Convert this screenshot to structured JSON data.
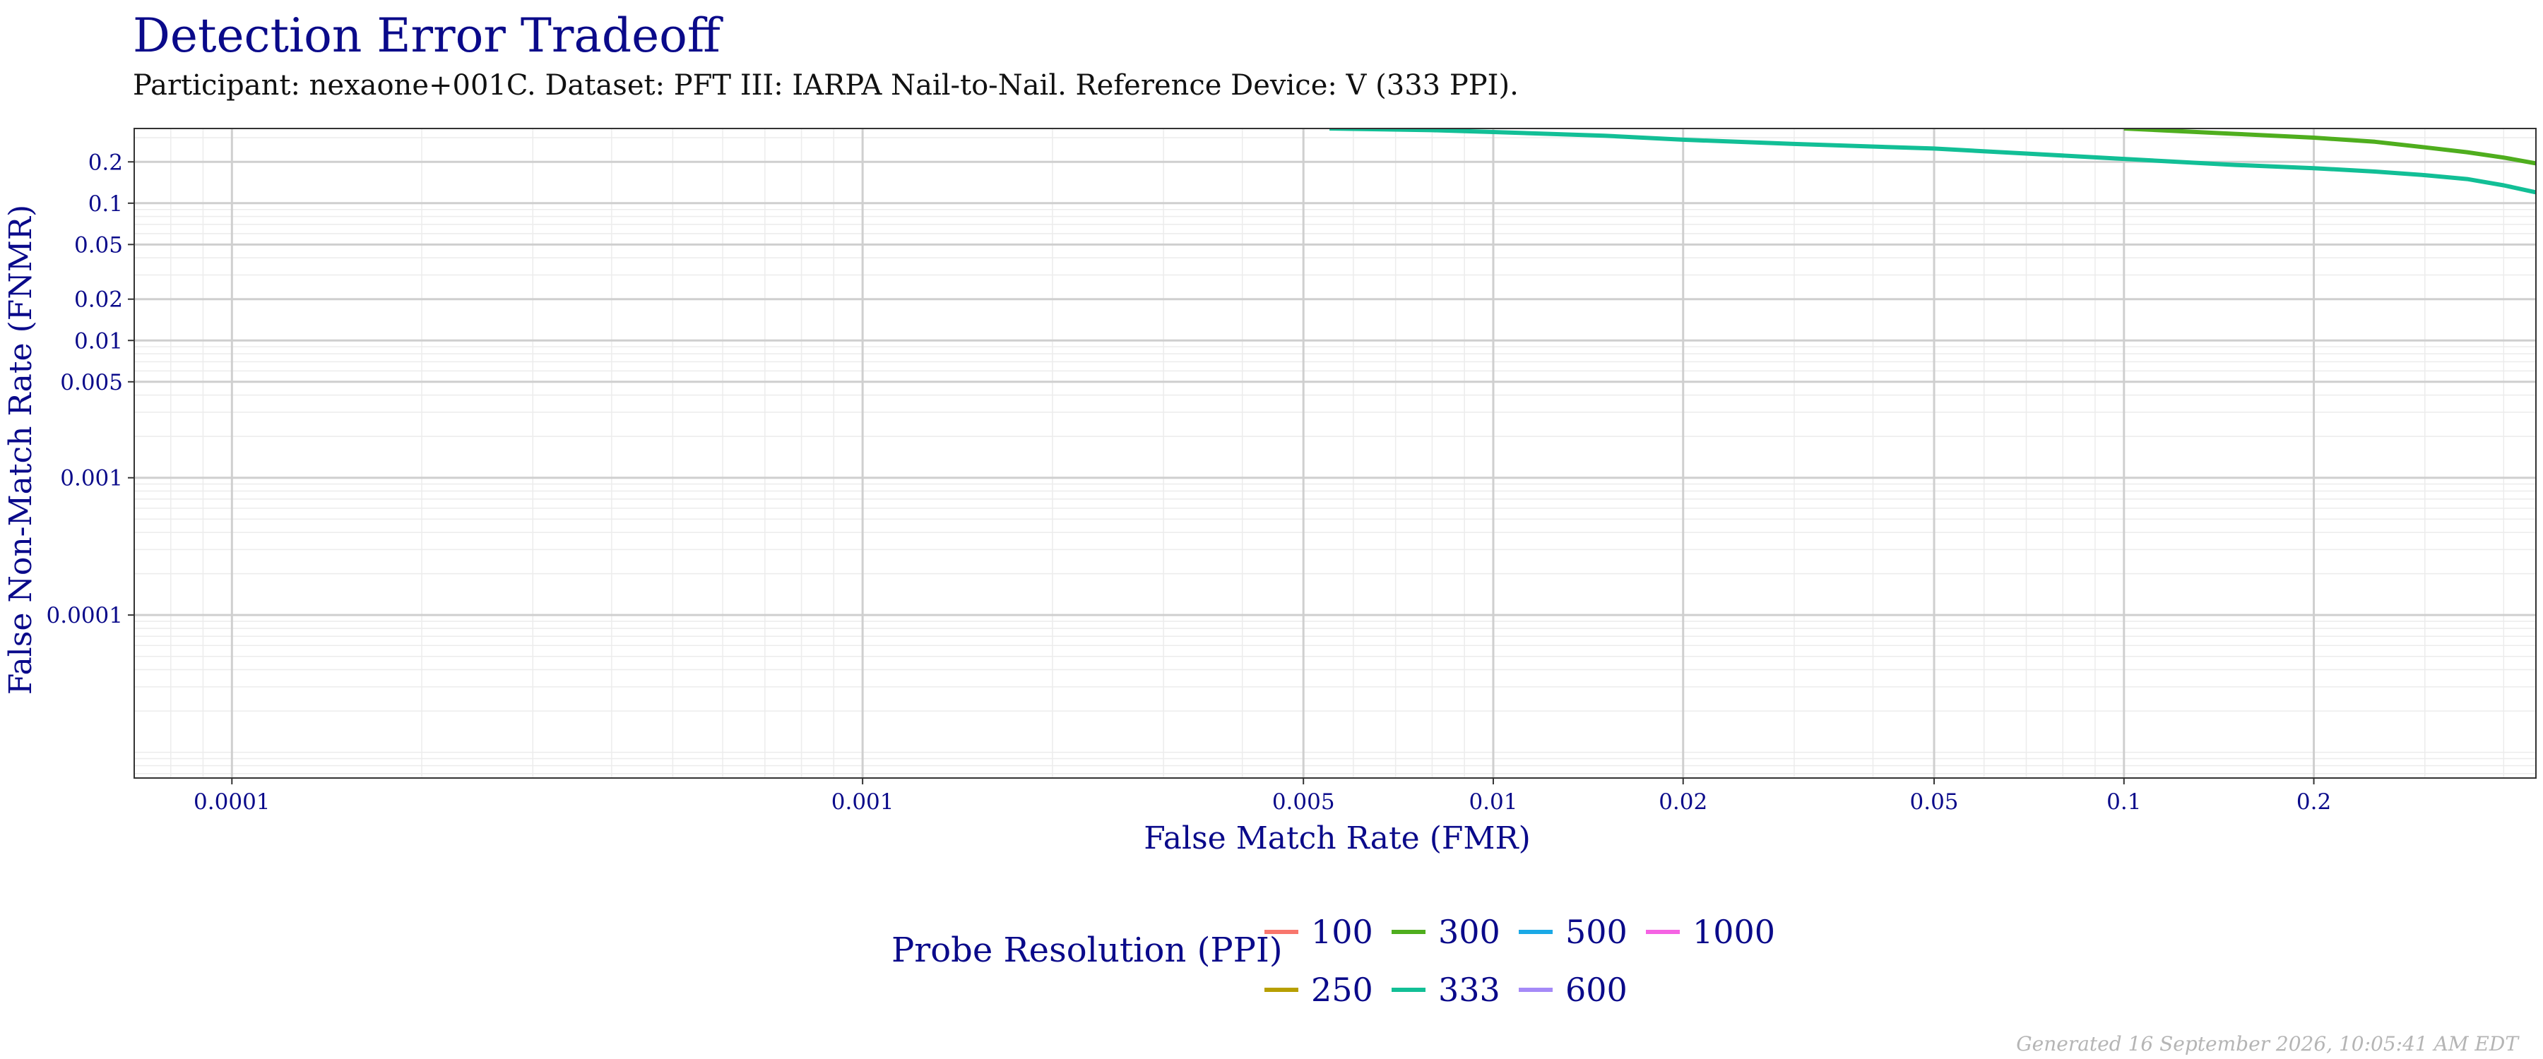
{
  "header": {
    "title": "Detection Error Tradeoff",
    "subtitle": "Participant: nexaone+001C. Dataset: PFT III: IARPA Nail-to-Nail. Reference Device: V (333 PPI)."
  },
  "footer": {
    "generated": "Generated 16 September 2026, 10:05:41 AM EDT"
  },
  "colors": {
    "text": "#0a0a8a",
    "axis": "#333333",
    "grid_major": "#cfcfcf",
    "grid_minor": "#ececec"
  },
  "chart_data": {
    "type": "line",
    "title": "",
    "xlabel": "False Match Rate (FMR)",
    "ylabel": "False Non-Match Rate (FNMR)",
    "x_scale": "log",
    "y_scale": "log",
    "xlim": [
      7e-05,
      0.45
    ],
    "ylim": [
      6.5e-06,
      0.35
    ],
    "grid": true,
    "x_ticks": [
      {
        "value": 0.0001,
        "label": "0.0001"
      },
      {
        "value": 0.001,
        "label": "0.001"
      },
      {
        "value": 0.005,
        "label": "0.005"
      },
      {
        "value": 0.01,
        "label": "0.01"
      },
      {
        "value": 0.02,
        "label": "0.02"
      },
      {
        "value": 0.05,
        "label": "0.05"
      },
      {
        "value": 0.1,
        "label": "0.1"
      },
      {
        "value": 0.2,
        "label": "0.2"
      }
    ],
    "y_ticks": [
      {
        "value": 0.0001,
        "label": "0.0001"
      },
      {
        "value": 0.001,
        "label": "0.001"
      },
      {
        "value": 0.005,
        "label": "0.005"
      },
      {
        "value": 0.01,
        "label": "0.01"
      },
      {
        "value": 0.02,
        "label": "0.02"
      },
      {
        "value": 0.05,
        "label": "0.05"
      },
      {
        "value": 0.1,
        "label": "0.1"
      },
      {
        "value": 0.2,
        "label": "0.2"
      }
    ],
    "legend": {
      "title": "Probe Resolution (PPI)",
      "position": "bottom",
      "entries": [
        {
          "label": "100",
          "color": "#f8766d"
        },
        {
          "label": "250",
          "color": "#b79f00"
        },
        {
          "label": "300",
          "color": "#4fae1e"
        },
        {
          "label": "333",
          "color": "#12bf96"
        },
        {
          "label": "500",
          "color": "#1aa9e6"
        },
        {
          "label": "600",
          "color": "#a58af7"
        },
        {
          "label": "1000",
          "color": "#f563e3"
        }
      ]
    },
    "series": [
      {
        "name": "300",
        "color": "#4fae1e",
        "x": [
          0.1,
          0.15,
          0.2,
          0.25,
          0.3,
          0.35,
          0.4,
          0.45
        ],
        "y": [
          0.35,
          0.32,
          0.3,
          0.28,
          0.255,
          0.235,
          0.215,
          0.195
        ]
      },
      {
        "name": "333",
        "color": "#12bf96",
        "x": [
          0.0055,
          0.008,
          0.01,
          0.015,
          0.02,
          0.03,
          0.05,
          0.07,
          0.1,
          0.15,
          0.2,
          0.25,
          0.3,
          0.35,
          0.4,
          0.45
        ],
        "y": [
          0.35,
          0.34,
          0.33,
          0.31,
          0.29,
          0.27,
          0.25,
          0.23,
          0.21,
          0.19,
          0.18,
          0.17,
          0.16,
          0.15,
          0.135,
          0.12
        ]
      }
    ]
  }
}
